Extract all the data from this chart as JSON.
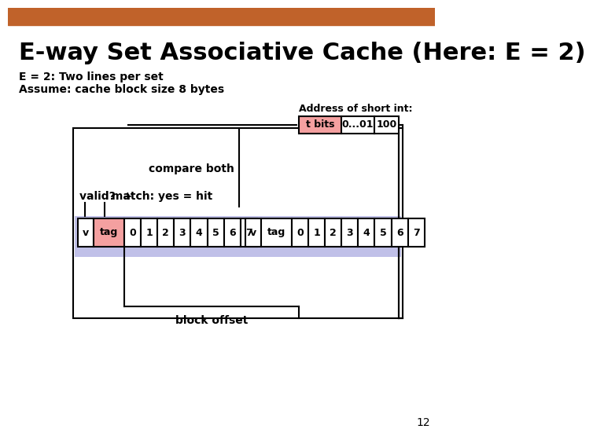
{
  "title": "E-way Set Associative Cache (Here: E = 2)",
  "subtitle_line1": "E = 2: Two lines per set",
  "subtitle_line2": "Assume: cache block size 8 bytes",
  "header_bar_color": "#c0622a",
  "background_color": "#ffffff",
  "title_color": "#000000",
  "address_label": "Address of short int:",
  "addr_cells": [
    "t bits",
    "0...01",
    "100"
  ],
  "addr_cell_colors": [
    "#f4a0a0",
    "#ffffff",
    "#ffffff"
  ],
  "tag_color": "#f4a0a0",
  "set_bg_color": "#c0c0e8",
  "valid_label": "valid?  +",
  "match_label": "match: yes = hit",
  "compare_label": "compare both",
  "offset_label": "block offset",
  "page_num": "12"
}
